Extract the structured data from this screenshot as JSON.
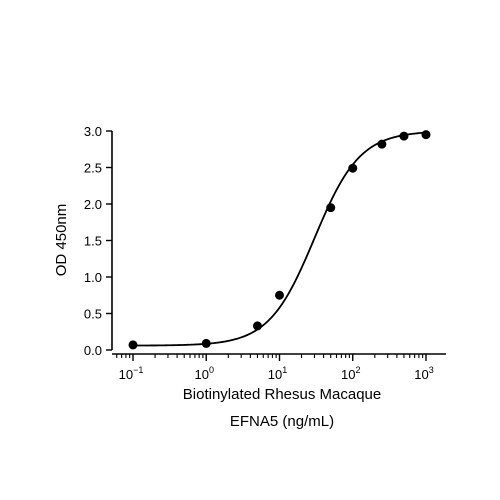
{
  "chart_data": {
    "type": "scatter",
    "xscale": "log",
    "xlabel_lines": [
      "Biotinylated Rhesus Macaque",
      "EFNA5 (ng/mL)"
    ],
    "ylabel": "OD 450nm",
    "xlim": [
      0.1,
      1000
    ],
    "ylim": [
      0,
      3.0
    ],
    "x_ticks": [
      {
        "base": "10",
        "exp": "−1"
      },
      {
        "base": "10",
        "exp": "0"
      },
      {
        "base": "10",
        "exp": "1"
      },
      {
        "base": "10",
        "exp": "2"
      },
      {
        "base": "10",
        "exp": "3"
      }
    ],
    "y_ticks": [
      "0.0",
      "0.5",
      "1.0",
      "1.5",
      "2.0",
      "2.5",
      "3.0"
    ],
    "series": [
      {
        "x": [
          0.1,
          1,
          5,
          10,
          50,
          100,
          250,
          500,
          1000
        ],
        "y": [
          0.07,
          0.09,
          0.33,
          0.75,
          1.95,
          2.49,
          2.82,
          2.93,
          2.95
        ]
      }
    ],
    "fit": "4PL",
    "fit_params": {
      "bottom": 0.06,
      "top": 3.0,
      "ec50": 30,
      "hill": 1.4
    },
    "grid": false,
    "color": "#000000"
  }
}
